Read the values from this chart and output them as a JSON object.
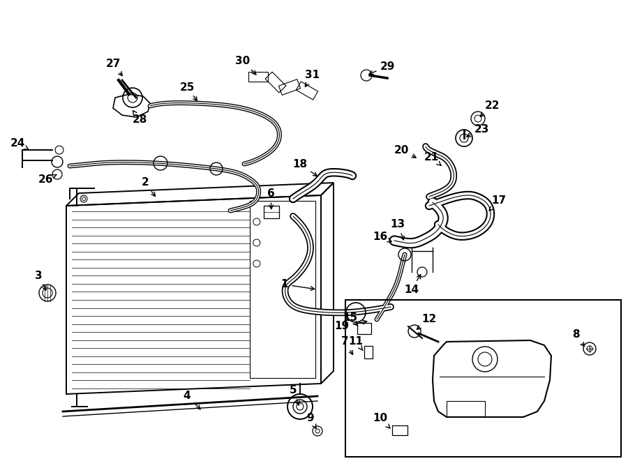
{
  "bg_color": "#ffffff",
  "line_color": "#000000",
  "fig_width": 9.0,
  "fig_height": 6.61,
  "font_size": 11,
  "lw_main": 1.4,
  "lw_hose": 4.5,
  "lw_hose_inner": 2.8
}
